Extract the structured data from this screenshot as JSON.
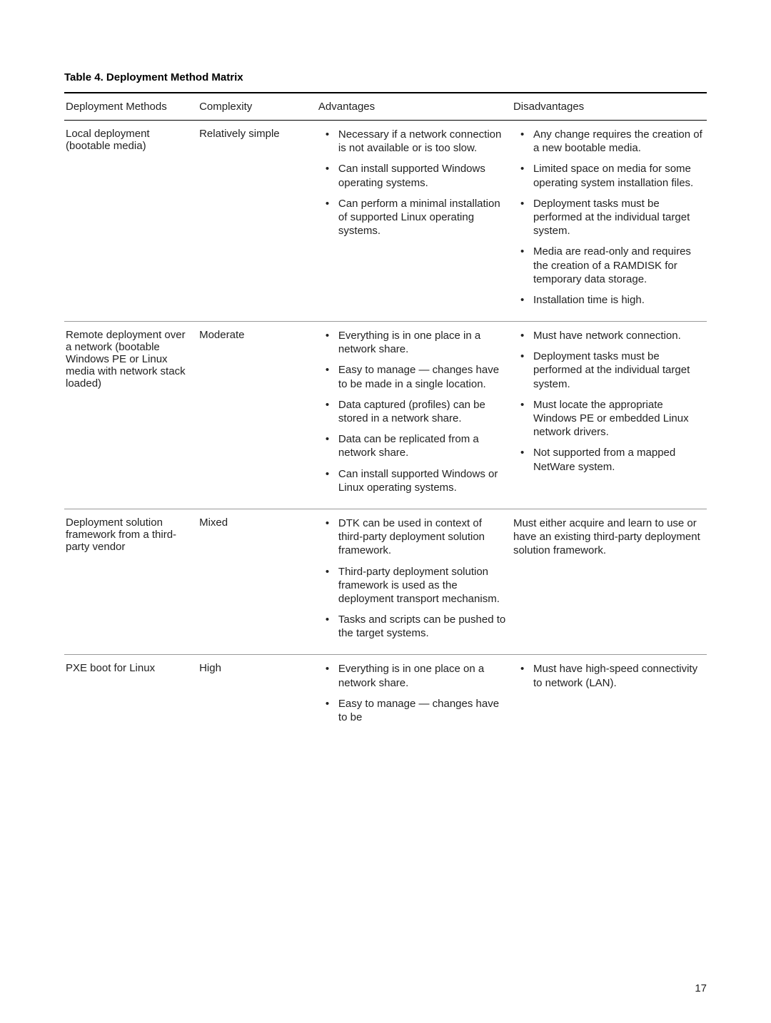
{
  "tableTitle": "Table 4. Deployment Method Matrix",
  "pageNumber": "17",
  "headers": {
    "method": "Deployment Methods",
    "complexity": "Complexity",
    "advantages": "Advantages",
    "disadvantages": "Disadvantages"
  },
  "rows": [
    {
      "method": "Local deployment (bootable media)",
      "complexity": "Relatively simple",
      "advantages": [
        "Necessary if a network connection is not available or is too slow.",
        "Can install supported Windows operating systems.",
        "Can perform a minimal installation of supported Linux operating systems."
      ],
      "disadvantages": [
        "Any change requires the creation of a new bootable media.",
        "Limited space on media for some operating system installation files.",
        "Deployment tasks must be performed at the individual target system.",
        "Media are read-only and requires the creation of a RAMDISK for temporary data storage.",
        "Installation time is high."
      ]
    },
    {
      "method": "Remote deployment over a network (bootable Windows PE or Linux media with network stack loaded)",
      "complexity": "Moderate",
      "advantages": [
        "Everything is in one place in a network share.",
        "Easy to manage — changes have to be made in a single location.",
        "Data captured (profiles) can be stored in a network share.",
        "Data can be replicated from a network share.",
        "Can install supported Windows or Linux operating systems."
      ],
      "disadvantages": [
        "Must have network connection.",
        "Deployment tasks must be performed at the individual target system.",
        "Must locate the appropriate Windows PE or embedded Linux network drivers.",
        "Not supported from a mapped NetWare system."
      ]
    },
    {
      "method": "Deployment solution framework from a third-party vendor",
      "complexity": "Mixed",
      "advantages": [
        "DTK can be used in context of third-party deployment solution framework.",
        "Third-party deployment solution framework is used as the deployment transport mechanism.",
        "Tasks and scripts can be pushed to the target systems."
      ],
      "disadvantagesPlain": "Must either acquire and learn to use or have an existing third-party deployment solution framework."
    },
    {
      "method": "PXE boot for Linux",
      "complexity": "High",
      "advantages": [
        "Everything is in one place on a network share.",
        "Easy to manage — changes have to be"
      ],
      "disadvantages": [
        "Must have high-speed connectivity to network (LAN)."
      ]
    }
  ]
}
